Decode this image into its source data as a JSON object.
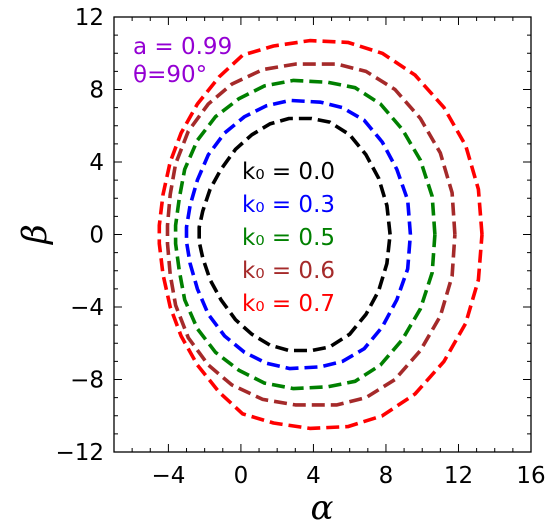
{
  "chart_data": {
    "type": "line",
    "title": "",
    "xlabel": "α",
    "ylabel": "β",
    "xlim": [
      -7,
      16
    ],
    "ylim": [
      -12,
      12
    ],
    "xticks": [
      -4,
      0,
      4,
      8,
      12,
      16
    ],
    "yticks": [
      -12,
      -8,
      -4,
      0,
      4,
      8,
      12
    ],
    "xtick_labels": [
      "−4",
      "0",
      "4",
      "8",
      "12",
      "16"
    ],
    "ytick_labels": [
      "−12",
      "−8",
      "−4",
      "0",
      "4",
      "8",
      "12"
    ],
    "grid": false,
    "legend_placement": "center",
    "annotations": [
      {
        "text": "a = 0.99",
        "color": "#9400d3"
      },
      {
        "text": "θ=90°",
        "color": "#9400d3"
      }
    ],
    "series": [
      {
        "name": "k₀ = 0.0",
        "color": "#000000",
        "x": [
          8.23,
          8.05,
          7.6,
          6.9,
          6.0,
          4.9,
          3.9,
          2.65,
          1.6,
          0.6,
          -0.3,
          -1.1,
          -1.7,
          -2.1,
          -2.3,
          -2.3,
          -2.1,
          -1.7,
          -1.1,
          -0.3,
          0.6,
          1.6,
          2.65,
          3.9,
          4.9,
          6.0,
          6.9,
          7.6,
          8.05,
          8.23
        ],
        "y": [
          0,
          1.6,
          3.1,
          4.4,
          5.5,
          6.2,
          6.4,
          6.4,
          6.1,
          5.5,
          4.7,
          3.6,
          2.5,
          1.3,
          0.4,
          -0.4,
          -1.3,
          -2.5,
          -3.6,
          -4.7,
          -5.5,
          -6.1,
          -6.4,
          -6.4,
          -6.2,
          -5.5,
          -4.4,
          -3.1,
          -1.6,
          0
        ]
      },
      {
        "name": "k₀ = 0.3",
        "color": "#0000ff",
        "x": [
          9.35,
          9.2,
          8.6,
          7.8,
          6.8,
          5.6,
          4.4,
          2.7,
          1.4,
          0.2,
          -0.9,
          -1.8,
          -2.4,
          -2.8,
          -3.0,
          -3.0,
          -2.8,
          -2.4,
          -1.8,
          -0.9,
          0.2,
          1.4,
          2.7,
          4.4,
          5.6,
          6.8,
          7.8,
          8.6,
          9.2,
          9.35
        ],
        "y": [
          0,
          1.9,
          3.6,
          5.1,
          6.3,
          7.0,
          7.3,
          7.4,
          7.1,
          6.5,
          5.6,
          4.4,
          3.0,
          1.6,
          0.4,
          -0.4,
          -1.6,
          -3.0,
          -4.4,
          -5.6,
          -6.5,
          -7.1,
          -7.4,
          -7.3,
          -7.0,
          -6.3,
          -5.1,
          -3.6,
          -1.9,
          0
        ]
      },
      {
        "name": "k₀ = 0.5",
        "color": "#008000",
        "x": [
          10.7,
          10.55,
          9.9,
          8.9,
          7.7,
          6.3,
          4.8,
          2.9,
          1.3,
          -0.1,
          -1.4,
          -2.4,
          -3.1,
          -3.4,
          -3.6,
          -3.6,
          -3.4,
          -3.1,
          -2.4,
          -1.4,
          -0.1,
          1.3,
          2.9,
          4.8,
          6.3,
          7.7,
          8.9,
          9.9,
          10.55,
          10.7
        ],
        "y": [
          0,
          2.1,
          4.1,
          5.8,
          7.2,
          8.1,
          8.4,
          8.5,
          8.2,
          7.5,
          6.5,
          5.2,
          3.6,
          2.0,
          0.5,
          -0.5,
          -2.0,
          -3.6,
          -5.2,
          -6.5,
          -7.5,
          -8.2,
          -8.5,
          -8.4,
          -8.1,
          -7.2,
          -5.8,
          -4.1,
          -2.1,
          0
        ]
      },
      {
        "name": "k₀ = 0.6",
        "color": "#a52a2a",
        "x": [
          11.8,
          11.65,
          11.0,
          9.9,
          8.5,
          6.9,
          5.3,
          3.0,
          1.2,
          -0.5,
          -1.8,
          -2.9,
          -3.6,
          -3.9,
          -4.05,
          -4.05,
          -3.9,
          -3.6,
          -2.9,
          -1.8,
          -0.5,
          1.2,
          3.0,
          5.3,
          6.9,
          8.5,
          9.9,
          11.0,
          11.65,
          11.8
        ],
        "y": [
          0,
          2.3,
          4.5,
          6.4,
          8.0,
          9.0,
          9.4,
          9.4,
          9.1,
          8.3,
          7.2,
          5.7,
          3.9,
          2.2,
          0.5,
          -0.5,
          -2.2,
          -3.9,
          -5.7,
          -7.2,
          -8.3,
          -9.1,
          -9.4,
          -9.4,
          -9.0,
          -8.0,
          -6.4,
          -4.5,
          -2.3,
          0
        ]
      },
      {
        "name": "k₀ = 0.7",
        "color": "#ff0000",
        "x": [
          13.3,
          13.1,
          12.4,
          11.2,
          9.6,
          7.8,
          5.9,
          3.8,
          1.8,
          0.1,
          -1.2,
          -2.4,
          -3.3,
          -3.9,
          -4.3,
          -4.5,
          -4.5,
          -4.3,
          -3.9,
          -3.3,
          -2.4,
          -1.2,
          0.1,
          1.8,
          3.8,
          5.9,
          7.8,
          9.6,
          11.2,
          12.4,
          13.1,
          13.3
        ],
        "y": [
          0,
          2.5,
          4.9,
          7.0,
          8.8,
          10.0,
          10.6,
          10.7,
          10.4,
          9.9,
          8.7,
          7.2,
          5.6,
          4.0,
          2.2,
          0.5,
          -0.5,
          -2.2,
          -4.0,
          -5.6,
          -7.2,
          -8.7,
          -9.9,
          -10.4,
          -10.7,
          -10.6,
          -10.0,
          -8.8,
          -7.0,
          -4.9,
          -2.5,
          0
        ]
      }
    ]
  }
}
